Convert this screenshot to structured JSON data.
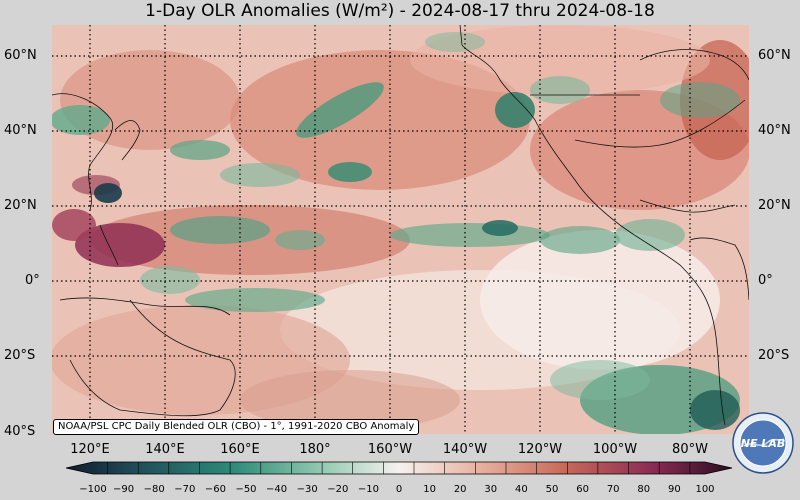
{
  "title": "1-Day OLR Anomalies (W/m²) - 2024-08-17 thru 2024-08-18",
  "map": {
    "lat_labels": [
      "60°N",
      "40°N",
      "20°N",
      "0°",
      "20°S",
      "40°S"
    ],
    "lon_labels": [
      "120°E",
      "140°E",
      "160°E",
      "180°",
      "160°W",
      "140°W",
      "120°W",
      "100°W",
      "80°W"
    ],
    "gridlines": true
  },
  "source_note": "NOAA/PSL CPC Daily Blended OLR (CBO) - 1°, 1991-2020 CBO Anomaly",
  "colorbar": {
    "ticks": [
      "−100",
      "−90",
      "−80",
      "−70",
      "−60",
      "−50",
      "−40",
      "−30",
      "−20",
      "−10",
      "0",
      "10",
      "20",
      "30",
      "40",
      "50",
      "60",
      "70",
      "80",
      "90",
      "100"
    ],
    "negative_color": "#2f8f74",
    "neutral_color": "#f6efe9",
    "positive_color": "#c26a5a",
    "extreme_positive_color": "#6b1b52",
    "extreme_negative_color": "#1a3a4c"
  },
  "logo": {
    "text": "NE LAB"
  }
}
